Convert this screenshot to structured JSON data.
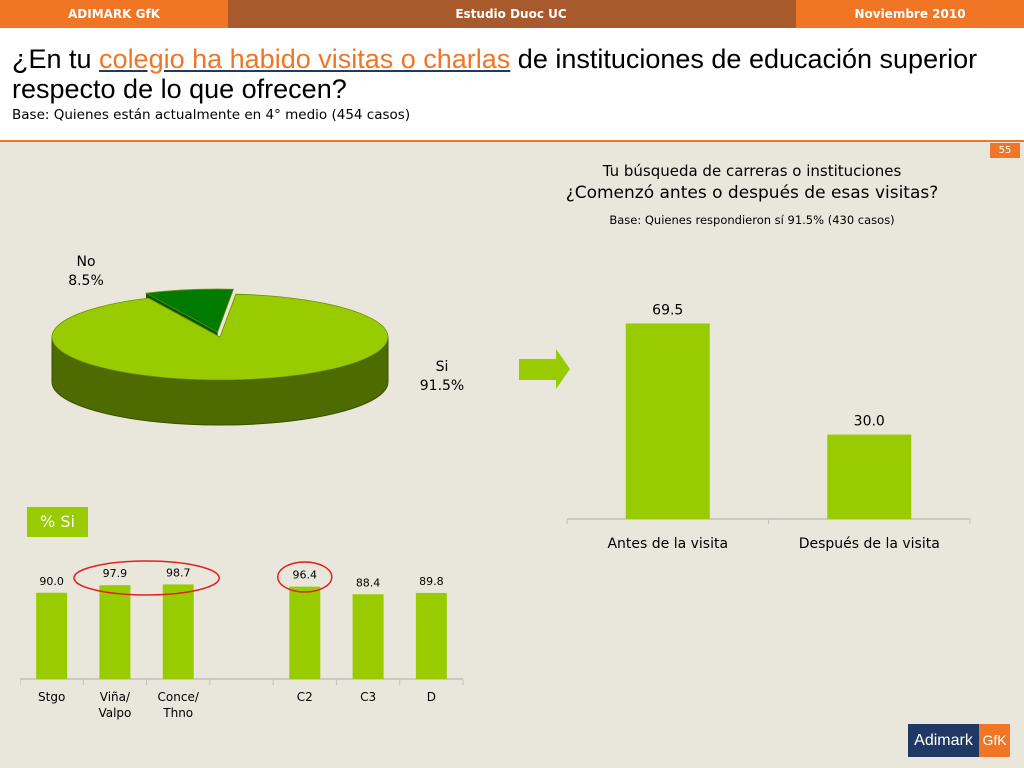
{
  "header": {
    "left": "ADIMARK GfK",
    "center": "Estudio Duoc UC",
    "right": "Noviembre 2010"
  },
  "title": {
    "prefix": "¿En tu ",
    "highlight": "colegio ha habido visitas o charlas",
    "suffix": " de instituciones de educación superior respecto de lo que ofrecen?",
    "base": "Base: Quienes están actualmente en 4° medio (454 casos)"
  },
  "page_number": "55",
  "colors": {
    "orange": "#f07524",
    "brown": "#a85a2c",
    "green": "#99cc00",
    "dark_green": "#007a00",
    "navy": "#1f3864",
    "background": "#e9e7dc"
  },
  "pct_label": "% Si",
  "logo": {
    "left": "Adimark",
    "right": "GfK"
  },
  "chart_data": [
    {
      "type": "pie",
      "title": "",
      "slices": [
        {
          "label": "No",
          "value_label": "8.5%",
          "value": 8.5,
          "color": "#007a00"
        },
        {
          "label": "Si",
          "value_label": "91.5%",
          "value": 91.5,
          "color": "#99cc00"
        }
      ]
    },
    {
      "type": "bar",
      "title": "Tu búsqueda de carreras o instituciones",
      "subtitle": "¿Comenzó antes o después de esas visitas?",
      "base": "Base: Quienes respondieron sí 91.5% (430 casos)",
      "categories": [
        "Antes de la visita",
        "Después de la visita"
      ],
      "values": [
        69.5,
        30.0
      ],
      "value_labels": [
        "69.5",
        "30.0"
      ],
      "ylim": [
        0,
        75
      ],
      "color": "#99cc00"
    },
    {
      "type": "bar",
      "title": "% Si",
      "categories": [
        "Stgo",
        "Viña/ Valpo",
        "Conce/ Thno",
        "",
        "C2",
        "C3",
        "D"
      ],
      "category_lines": [
        [
          "Stgo"
        ],
        [
          "Viña/",
          "Valpo"
        ],
        [
          "Conce/",
          "Thno"
        ],
        [],
        [
          "C2"
        ],
        [
          "C3"
        ],
        [
          "D"
        ]
      ],
      "values": [
        90.0,
        97.9,
        98.7,
        null,
        96.4,
        88.4,
        89.8
      ],
      "value_labels": [
        "90.0",
        "97.9",
        "98.7",
        "",
        "96.4",
        "88.4",
        "89.8"
      ],
      "ylim": [
        0,
        120
      ],
      "color": "#99cc00",
      "highlighted": [
        "Viña/ Valpo",
        "Conce/ Thno",
        "C2"
      ]
    }
  ]
}
